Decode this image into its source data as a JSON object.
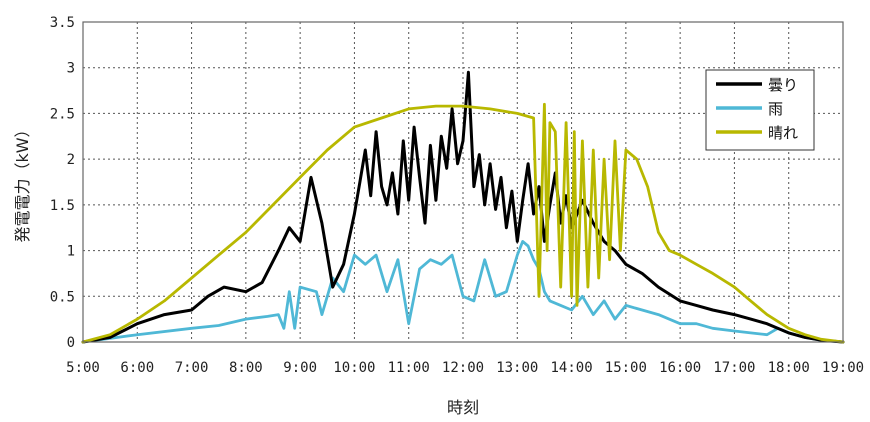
{
  "chart_data": {
    "type": "line",
    "title": "",
    "xlabel": "時刻",
    "ylabel": "発電電力（kW）",
    "xlim": [
      "5:00",
      "19:00"
    ],
    "ylim": [
      0,
      3.5
    ],
    "x_ticks": [
      "5:00",
      "6:00",
      "7:00",
      "8:00",
      "9:00",
      "10:00",
      "11:00",
      "12:00",
      "13:00",
      "14:00",
      "15:00",
      "16:00",
      "17:00",
      "18:00",
      "19:00"
    ],
    "y_ticks": [
      "0",
      "0.5",
      "1",
      "1.5",
      "2",
      "2.5",
      "3",
      "3.5"
    ],
    "grid": true,
    "legend_position": "top-right",
    "series": [
      {
        "name": "曇り",
        "color": "#000000",
        "x": [
          5.0,
          5.5,
          6.0,
          6.5,
          7.0,
          7.3,
          7.6,
          8.0,
          8.3,
          8.6,
          8.8,
          9.0,
          9.2,
          9.4,
          9.6,
          9.8,
          10.0,
          10.1,
          10.2,
          10.3,
          10.4,
          10.5,
          10.6,
          10.7,
          10.8,
          10.9,
          11.0,
          11.1,
          11.2,
          11.3,
          11.4,
          11.5,
          11.6,
          11.7,
          11.8,
          11.9,
          12.0,
          12.1,
          12.2,
          12.3,
          12.4,
          12.5,
          12.6,
          12.7,
          12.8,
          12.9,
          13.0,
          13.1,
          13.2,
          13.3,
          13.4,
          13.5,
          13.6,
          13.7,
          13.8,
          13.9,
          14.0,
          14.2,
          14.4,
          14.6,
          14.8,
          15.0,
          15.3,
          15.6,
          16.0,
          16.3,
          16.6,
          17.0,
          17.3,
          17.6,
          18.0,
          18.3,
          18.6,
          19.0
        ],
        "values": [
          0.0,
          0.05,
          0.2,
          0.3,
          0.35,
          0.5,
          0.6,
          0.55,
          0.65,
          1.0,
          1.25,
          1.1,
          1.8,
          1.3,
          0.6,
          0.85,
          1.4,
          1.75,
          2.1,
          1.6,
          2.3,
          1.7,
          1.5,
          1.85,
          1.4,
          2.2,
          1.55,
          2.35,
          1.8,
          1.3,
          2.15,
          1.55,
          2.25,
          1.9,
          2.55,
          1.95,
          2.2,
          2.95,
          1.7,
          2.05,
          1.5,
          1.95,
          1.45,
          1.8,
          1.25,
          1.65,
          1.1,
          1.55,
          1.95,
          1.4,
          1.7,
          1.1,
          1.5,
          1.85,
          1.3,
          1.6,
          1.25,
          1.55,
          1.3,
          1.1,
          1.0,
          0.85,
          0.75,
          0.6,
          0.45,
          0.4,
          0.35,
          0.3,
          0.25,
          0.2,
          0.1,
          0.05,
          0.02,
          0.0
        ]
      },
      {
        "name": "雨",
        "color": "#4fb8d6",
        "x": [
          5.0,
          6.0,
          7.0,
          7.5,
          8.0,
          8.4,
          8.6,
          8.7,
          8.8,
          8.9,
          9.0,
          9.3,
          9.4,
          9.6,
          9.8,
          10.0,
          10.2,
          10.4,
          10.6,
          10.8,
          11.0,
          11.2,
          11.4,
          11.6,
          11.8,
          12.0,
          12.2,
          12.4,
          12.6,
          12.8,
          13.0,
          13.1,
          13.2,
          13.3,
          13.4,
          13.5,
          13.6,
          13.8,
          14.0,
          14.2,
          14.4,
          14.6,
          14.8,
          15.0,
          15.3,
          15.6,
          16.0,
          16.3,
          16.6,
          17.0,
          17.3,
          17.6,
          17.8,
          18.0,
          18.3,
          18.6,
          19.0
        ],
        "values": [
          0.0,
          0.08,
          0.15,
          0.18,
          0.25,
          0.28,
          0.3,
          0.15,
          0.55,
          0.15,
          0.6,
          0.55,
          0.3,
          0.7,
          0.55,
          0.95,
          0.85,
          0.95,
          0.55,
          0.9,
          0.2,
          0.8,
          0.9,
          0.85,
          0.95,
          0.5,
          0.45,
          0.9,
          0.5,
          0.55,
          0.95,
          1.1,
          1.05,
          0.9,
          0.8,
          0.55,
          0.45,
          0.4,
          0.35,
          0.5,
          0.3,
          0.45,
          0.25,
          0.4,
          0.35,
          0.3,
          0.2,
          0.2,
          0.15,
          0.12,
          0.1,
          0.08,
          0.15,
          0.1,
          0.05,
          0.02,
          0.0
        ]
      },
      {
        "name": "晴れ",
        "color": "#b8b800",
        "x": [
          5.0,
          5.5,
          6.0,
          6.5,
          7.0,
          7.5,
          8.0,
          8.5,
          9.0,
          9.5,
          10.0,
          10.5,
          11.0,
          11.5,
          12.0,
          12.5,
          13.0,
          13.3,
          13.4,
          13.5,
          13.55,
          13.6,
          13.7,
          13.8,
          13.9,
          14.0,
          14.05,
          14.1,
          14.2,
          14.3,
          14.4,
          14.5,
          14.6,
          14.7,
          14.8,
          14.9,
          15.0,
          15.2,
          15.4,
          15.6,
          15.8,
          16.0,
          16.3,
          16.6,
          17.0,
          17.3,
          17.6,
          18.0,
          18.3,
          18.6,
          19.0
        ],
        "values": [
          0.0,
          0.08,
          0.25,
          0.45,
          0.7,
          0.95,
          1.2,
          1.5,
          1.8,
          2.1,
          2.35,
          2.45,
          2.55,
          2.58,
          2.58,
          2.55,
          2.5,
          2.45,
          0.5,
          2.6,
          1.0,
          2.4,
          2.3,
          0.6,
          2.4,
          0.5,
          2.3,
          0.4,
          2.2,
          0.6,
          2.1,
          0.7,
          2.0,
          0.9,
          2.2,
          1.0,
          2.1,
          2.0,
          1.7,
          1.2,
          1.0,
          0.95,
          0.85,
          0.75,
          0.6,
          0.45,
          0.3,
          0.15,
          0.08,
          0.03,
          0.0
        ]
      }
    ]
  }
}
